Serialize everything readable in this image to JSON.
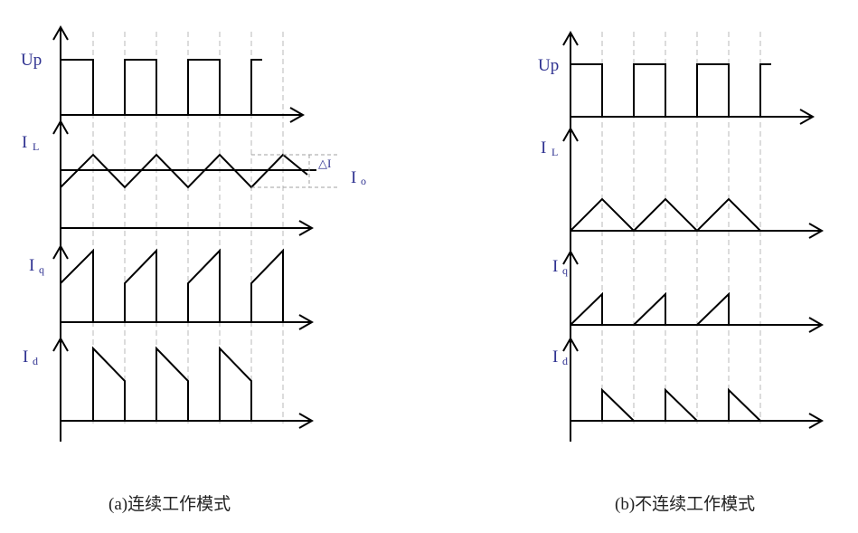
{
  "panel_a": {
    "signals": {
      "up": "Up",
      "il_main": "I",
      "il_sub": "L",
      "iq_main": "I",
      "iq_sub": "q",
      "id_main": "I",
      "id_sub": "d"
    },
    "delta_label": "△I",
    "io_main": "I",
    "io_sub": "o",
    "caption": "(a)连续工作模式"
  },
  "panel_b": {
    "signals": {
      "up": "Up",
      "il_main": "I",
      "il_sub": "L",
      "iq_main": "I",
      "iq_sub": "q",
      "id_main": "I",
      "id_sub": "d"
    },
    "caption": "(b)不连续工作模式"
  },
  "colors": {
    "label": "#2e3190",
    "waveform": "#000000",
    "guides": "#b8b8b8"
  }
}
